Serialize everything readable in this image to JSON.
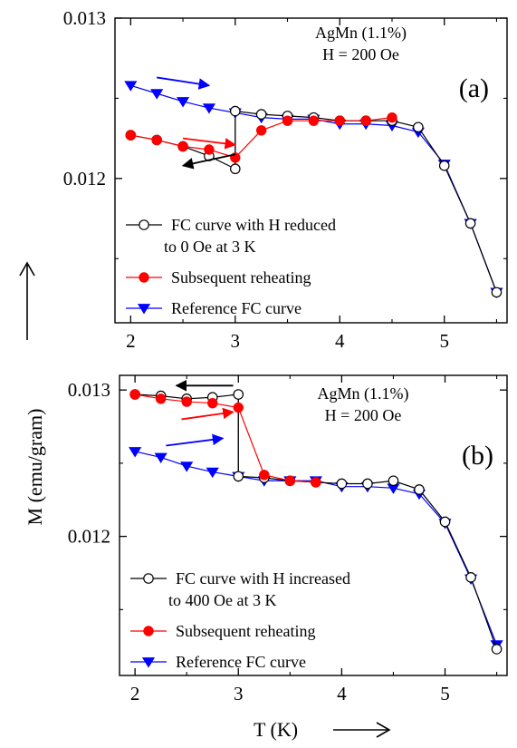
{
  "figure": {
    "ylabel": "M (emu/gram)",
    "xlabel": "T (K)"
  },
  "colors": {
    "black": "#000000",
    "red": "#ff0000",
    "blue": "#0000ff"
  },
  "chart_data": [
    {
      "type": "line",
      "panel_label": "(a)",
      "annotation_lines": [
        "AgMn (1.1%)",
        "H = 200 Oe"
      ],
      "xlim": [
        1.85,
        5.6
      ],
      "ylim": [
        0.0111,
        0.013
      ],
      "xticks": [
        2,
        3,
        4,
        5
      ],
      "xtick_labels": [
        "2",
        "3",
        "4",
        "5"
      ],
      "yticks": [
        0.012,
        0.013
      ],
      "ytick_labels": [
        "0.012",
        "0.013"
      ],
      "legend_placement": "bottom-left",
      "series": [
        {
          "name": "FC curve with H reduced to 0 Oe at 3 K",
          "legend_lines": [
            "FC curve with H reduced",
            "to 0 Oe at 3 K"
          ],
          "color": "#000000",
          "marker": "open-circle",
          "points": [
            [
              2.0,
              0.01227
            ],
            [
              2.25,
              0.01224
            ],
            [
              2.5,
              0.0122
            ],
            [
              2.75,
              0.01214
            ],
            [
              3.0,
              0.01206
            ],
            [
              3.0,
              0.01242
            ],
            [
              3.25,
              0.0124
            ],
            [
              3.5,
              0.01239
            ],
            [
              3.75,
              0.01238
            ],
            [
              4.0,
              0.01236
            ],
            [
              4.25,
              0.01236
            ],
            [
              4.5,
              0.01236
            ],
            [
              4.75,
              0.01232
            ],
            [
              5.0,
              0.01208
            ],
            [
              5.25,
              0.01172
            ],
            [
              5.5,
              0.01129
            ]
          ]
        },
        {
          "name": "Subsequent reheating",
          "legend_lines": [
            "Subsequent reheating"
          ],
          "color": "#ff0000",
          "marker": "filled-circle",
          "points": [
            [
              2.0,
              0.01227
            ],
            [
              2.25,
              0.01224
            ],
            [
              2.5,
              0.0122
            ],
            [
              2.75,
              0.01218
            ],
            [
              3.0,
              0.01213
            ],
            [
              3.25,
              0.0123
            ],
            [
              3.5,
              0.01236
            ],
            [
              3.75,
              0.01236
            ],
            [
              4.0,
              0.01236
            ],
            [
              4.25,
              0.01236
            ],
            [
              4.5,
              0.01238
            ]
          ]
        },
        {
          "name": "Reference FC curve",
          "legend_lines": [
            "Reference FC curve"
          ],
          "color": "#0000ff",
          "marker": "filled-triangle-down",
          "points": [
            [
              2.0,
              0.01258
            ],
            [
              2.25,
              0.01253
            ],
            [
              2.5,
              0.01248
            ],
            [
              2.75,
              0.01244
            ],
            [
              3.0,
              0.01241
            ],
            [
              3.25,
              0.01238
            ],
            [
              3.5,
              0.01237
            ],
            [
              3.75,
              0.01237
            ],
            [
              4.0,
              0.01234
            ],
            [
              4.25,
              0.01234
            ],
            [
              4.5,
              0.01233
            ],
            [
              4.75,
              0.01229
            ],
            [
              5.0,
              0.01209
            ],
            [
              5.25,
              0.01172
            ],
            [
              5.5,
              0.01129
            ]
          ]
        }
      ],
      "arrows": [
        {
          "color": "#0000ff",
          "direction": "right",
          "from": [
            2.25,
            0.01263
          ],
          "to": [
            2.75,
            0.01258
          ]
        },
        {
          "color": "#ff0000",
          "direction": "right",
          "from": [
            2.5,
            0.01225
          ],
          "to": [
            3.0,
            0.01221
          ]
        },
        {
          "color": "#000000",
          "direction": "left",
          "from": [
            3.0,
            0.01215
          ],
          "to": [
            2.5,
            0.01208
          ]
        }
      ],
      "connector": {
        "x": 3.0,
        "y": [
          0.01206,
          0.01242
        ]
      }
    },
    {
      "type": "line",
      "panel_label": "(b)",
      "annotation_lines": [
        "AgMn (1.1%)",
        "H = 200 Oe"
      ],
      "xlim": [
        1.85,
        5.6
      ],
      "ylim": [
        0.01105,
        0.0131
      ],
      "xticks": [
        2,
        3,
        4,
        5
      ],
      "xtick_labels": [
        "2",
        "3",
        "4",
        "5"
      ],
      "yticks": [
        0.012,
        0.013
      ],
      "ytick_labels": [
        "0.012",
        "0.013"
      ],
      "legend_placement": "bottom-left",
      "series": [
        {
          "name": "FC curve with H increased to 400 Oe at 3 K",
          "legend_lines": [
            "FC curve with H increased",
            "to 400 Oe at 3 K"
          ],
          "color": "#000000",
          "marker": "open-circle",
          "points": [
            [
              2.0,
              0.01297
            ],
            [
              2.25,
              0.01296
            ],
            [
              2.5,
              0.01294
            ],
            [
              2.75,
              0.01295
            ],
            [
              3.0,
              0.01297
            ],
            [
              3.0,
              0.01241
            ],
            [
              3.25,
              0.0124
            ],
            [
              3.5,
              0.01238
            ],
            [
              3.75,
              0.01237
            ],
            [
              4.0,
              0.01236
            ],
            [
              4.25,
              0.01236
            ],
            [
              4.5,
              0.01238
            ],
            [
              4.75,
              0.01232
            ],
            [
              5.0,
              0.0121
            ],
            [
              5.25,
              0.01172
            ],
            [
              5.5,
              0.01123
            ]
          ]
        },
        {
          "name": "Subsequent reheating",
          "legend_lines": [
            "Subsequent reheating"
          ],
          "color": "#ff0000",
          "marker": "filled-circle",
          "points": [
            [
              2.0,
              0.01297
            ],
            [
              2.25,
              0.01294
            ],
            [
              2.5,
              0.01292
            ],
            [
              2.75,
              0.01291
            ],
            [
              3.0,
              0.01288
            ],
            [
              3.25,
              0.01242
            ],
            [
              3.5,
              0.01238
            ],
            [
              3.75,
              0.01237
            ]
          ]
        },
        {
          "name": "Reference FC curve",
          "legend_lines": [
            "Reference FC curve"
          ],
          "color": "#0000ff",
          "marker": "filled-triangle-down",
          "points": [
            [
              2.0,
              0.01258
            ],
            [
              2.25,
              0.01254
            ],
            [
              2.5,
              0.01248
            ],
            [
              2.75,
              0.01244
            ],
            [
              3.0,
              0.01241
            ],
            [
              3.25,
              0.01238
            ],
            [
              3.5,
              0.01238
            ],
            [
              3.75,
              0.01238
            ],
            [
              4.0,
              0.01234
            ],
            [
              4.25,
              0.01234
            ],
            [
              4.5,
              0.01233
            ],
            [
              4.75,
              0.01229
            ],
            [
              5.0,
              0.01209
            ],
            [
              5.25,
              0.01171
            ],
            [
              5.5,
              0.01126
            ]
          ]
        }
      ],
      "arrows": [
        {
          "color": "#000000",
          "direction": "left",
          "from": [
            2.95,
            0.01303
          ],
          "to": [
            2.4,
            0.01303
          ]
        },
        {
          "color": "#ff0000",
          "direction": "right",
          "from": [
            2.45,
            0.0128
          ],
          "to": [
            2.95,
            0.01285
          ]
        },
        {
          "color": "#0000ff",
          "direction": "right",
          "from": [
            2.3,
            0.01262
          ],
          "to": [
            2.85,
            0.01267
          ]
        }
      ],
      "connector": {
        "x": 3.0,
        "y": [
          0.01241,
          0.01297
        ]
      }
    }
  ]
}
